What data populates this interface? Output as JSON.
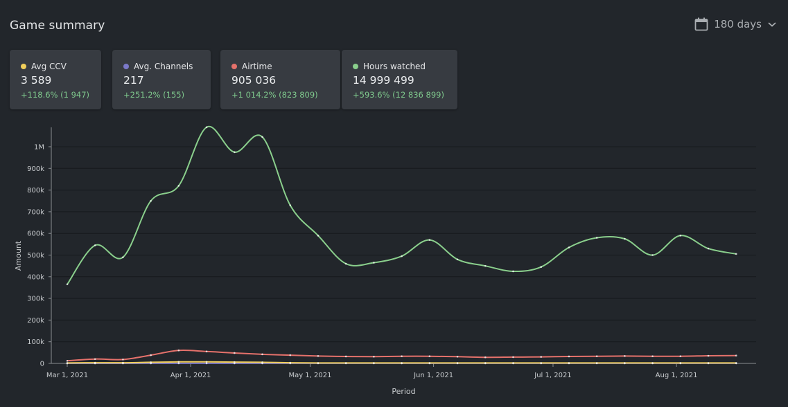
{
  "header": {
    "title": "Game summary"
  },
  "range_selector": {
    "label": "180 days",
    "icon": "calendar-icon",
    "chevron": "chevron-down-icon"
  },
  "cards": [
    {
      "label": "Avg CCV",
      "value": "3 589",
      "delta": "+118.6% (1 947)",
      "color": "#f1cf5b"
    },
    {
      "label": "Avg. Channels",
      "value": "217",
      "delta": "+251.2% (155)",
      "color": "#7b79c9"
    },
    {
      "label": "Airtime",
      "value": "905 036",
      "delta": "+1 014.2% (823 809)",
      "color": "#e5716b"
    },
    {
      "label": "Hours watched",
      "value": "14 999 499",
      "delta": "+593.6% (12 836 899)",
      "color": "#8acf8c"
    }
  ],
  "chart_data": {
    "type": "line",
    "xlabel": "Period",
    "ylabel": "Amount",
    "x_tick_labels": [
      "Mar 1, 2021",
      "Apr 1, 2021",
      "May 1, 2021",
      "Jun 1, 2021",
      "Jul 1, 2021",
      "Aug 1, 2021"
    ],
    "y_tick_labels": [
      "0",
      "100k",
      "200k",
      "300k",
      "400k",
      "500k",
      "600k",
      "700k",
      "800k",
      "900k",
      "1M"
    ],
    "ylim": [
      0,
      1000000
    ],
    "grid": true,
    "x": [
      "2021-03-01",
      "2021-03-08",
      "2021-03-15",
      "2021-03-22",
      "2021-03-29",
      "2021-04-05",
      "2021-04-12",
      "2021-04-19",
      "2021-04-26",
      "2021-05-03",
      "2021-05-10",
      "2021-05-17",
      "2021-05-24",
      "2021-05-31",
      "2021-06-07",
      "2021-06-14",
      "2021-06-21",
      "2021-06-28",
      "2021-07-05",
      "2021-07-12",
      "2021-07-19",
      "2021-07-26",
      "2021-08-02",
      "2021-08-09",
      "2021-08-16"
    ],
    "series": [
      {
        "name": "Hours watched",
        "color": "#8acf8c",
        "values": [
          365000,
          545000,
          490000,
          750000,
          820000,
          1090000,
          975000,
          1045000,
          730000,
          590000,
          460000,
          465000,
          495000,
          570000,
          480000,
          450000,
          425000,
          445000,
          535000,
          580000,
          575000,
          500000,
          590000,
          530000,
          505000
        ]
      },
      {
        "name": "Airtime",
        "color": "#e5716b",
        "values": [
          12000,
          20000,
          18000,
          38000,
          60000,
          55000,
          48000,
          42000,
          38000,
          34000,
          32000,
          31000,
          33000,
          33000,
          31000,
          28000,
          29000,
          30000,
          32000,
          33000,
          34000,
          33000,
          33000,
          35000,
          36000
        ]
      },
      {
        "name": "Avg CCV",
        "color": "#f1cf5b",
        "values": [
          2000,
          3000,
          3000,
          5000,
          7000,
          7000,
          6000,
          5000,
          3000,
          2000,
          2000,
          2000,
          2000,
          2000,
          2000,
          2000,
          2000,
          2000,
          2000,
          2000,
          2000,
          2000,
          2000,
          2000,
          2000
        ]
      },
      {
        "name": "Avg. Channels",
        "color": "#7b79c9",
        "values": [
          100,
          150,
          150,
          250,
          300,
          300,
          250,
          250,
          200,
          200,
          200,
          200,
          200,
          200,
          200,
          200,
          200,
          200,
          200,
          200,
          200,
          200,
          200,
          200,
          200
        ]
      }
    ]
  }
}
